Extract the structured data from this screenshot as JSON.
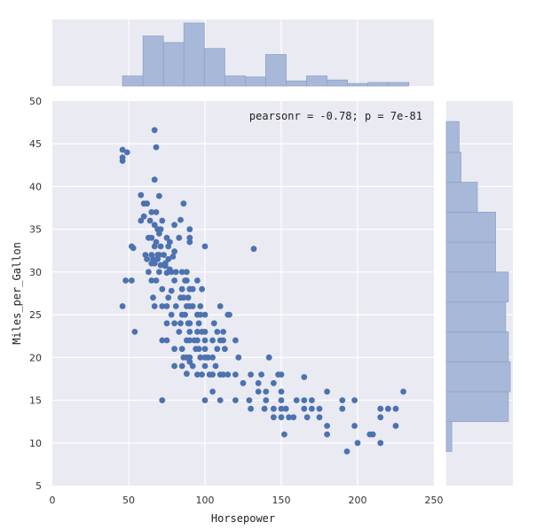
{
  "chart_data": {
    "type": "scatter",
    "title": "",
    "xlabel": "Horsepower",
    "ylabel": "Miles_per_Gallon",
    "xlim": [
      0,
      250
    ],
    "ylim": [
      5,
      50
    ],
    "xticks": [
      "0",
      "50",
      "100",
      "150",
      "200",
      "250"
    ],
    "yticks": [
      "5",
      "10",
      "15",
      "20",
      "25",
      "30",
      "35",
      "40",
      "45",
      "50"
    ],
    "grid": true,
    "annotation": "pearsonr = -0.78; p = 7e-81",
    "colors": {
      "background": "#EAEAF2",
      "grid": "#FFFFFF",
      "points": "#4C72B0",
      "hist_fill": "#A8B8D8",
      "hist_edge": "#8FA3C9"
    },
    "points": [
      [
        46,
        26
      ],
      [
        46,
        43
      ],
      [
        46,
        43.4
      ],
      [
        46,
        44.3
      ],
      [
        48,
        29
      ],
      [
        49,
        44
      ],
      [
        52,
        33
      ],
      [
        52,
        29
      ],
      [
        53,
        32.8
      ],
      [
        54,
        23
      ],
      [
        58,
        36
      ],
      [
        58,
        39
      ],
      [
        60,
        36.5
      ],
      [
        60,
        38
      ],
      [
        61,
        32
      ],
      [
        62,
        38
      ],
      [
        62,
        31.5
      ],
      [
        63,
        34
      ],
      [
        63,
        30
      ],
      [
        64,
        36
      ],
      [
        65,
        34
      ],
      [
        65,
        32
      ],
      [
        65,
        31
      ],
      [
        65,
        29
      ],
      [
        65,
        37
      ],
      [
        66,
        27
      ],
      [
        66,
        31.5
      ],
      [
        67,
        33
      ],
      [
        67,
        35.5
      ],
      [
        67,
        26
      ],
      [
        67,
        40.8
      ],
      [
        67,
        46.6
      ],
      [
        67,
        31
      ],
      [
        68,
        33.5
      ],
      [
        68,
        29
      ],
      [
        68,
        44.6
      ],
      [
        68,
        37
      ],
      [
        69,
        32
      ],
      [
        69,
        31.5
      ],
      [
        69,
        35
      ],
      [
        70,
        32
      ],
      [
        70,
        34.5
      ],
      [
        70,
        30
      ],
      [
        70,
        38.9
      ],
      [
        71,
        35
      ],
      [
        71,
        33
      ],
      [
        71,
        30.8
      ],
      [
        72,
        26
      ],
      [
        72,
        28
      ],
      [
        72,
        36
      ],
      [
        72,
        22
      ],
      [
        72,
        15
      ],
      [
        73,
        32
      ],
      [
        74,
        31
      ],
      [
        74,
        30.7
      ],
      [
        75,
        29.9
      ],
      [
        75,
        34
      ],
      [
        75,
        26
      ],
      [
        75,
        24
      ],
      [
        75,
        22
      ],
      [
        76,
        33
      ],
      [
        76,
        31.5
      ],
      [
        76,
        27
      ],
      [
        77,
        30.3
      ],
      [
        77,
        33.5
      ],
      [
        78,
        27.8
      ],
      [
        78,
        30
      ],
      [
        78,
        25
      ],
      [
        79,
        31.8
      ],
      [
        80,
        24
      ],
      [
        80,
        32.4
      ],
      [
        80,
        19
      ],
      [
        80,
        35.5
      ],
      [
        80,
        21
      ],
      [
        80,
        29
      ],
      [
        81,
        26
      ],
      [
        81,
        30
      ],
      [
        83,
        34
      ],
      [
        83,
        23
      ],
      [
        84,
        36.1
      ],
      [
        84,
        27
      ],
      [
        84,
        24
      ],
      [
        85,
        25
      ],
      [
        85,
        30
      ],
      [
        85,
        28
      ],
      [
        85,
        21
      ],
      [
        85,
        19
      ],
      [
        86,
        27
      ],
      [
        86,
        38
      ],
      [
        86,
        20
      ],
      [
        87,
        29
      ],
      [
        87,
        25
      ],
      [
        88,
        29
      ],
      [
        88,
        26
      ],
      [
        88,
        22
      ],
      [
        88,
        20
      ],
      [
        88,
        30
      ],
      [
        88,
        18.1
      ],
      [
        89,
        27
      ],
      [
        89,
        24
      ],
      [
        90,
        34
      ],
      [
        90,
        26
      ],
      [
        90,
        28
      ],
      [
        90,
        24
      ],
      [
        90,
        22
      ],
      [
        90,
        19.5
      ],
      [
        90,
        20
      ],
      [
        90,
        23
      ],
      [
        90,
        33.5
      ],
      [
        90,
        35
      ],
      [
        92,
        28
      ],
      [
        92,
        19
      ],
      [
        92,
        26
      ],
      [
        93,
        22
      ],
      [
        94,
        21
      ],
      [
        95,
        25
      ],
      [
        95,
        22
      ],
      [
        95,
        23
      ],
      [
        95,
        29
      ],
      [
        95,
        18
      ],
      [
        96,
        21
      ],
      [
        96,
        24
      ],
      [
        97,
        25
      ],
      [
        97,
        20
      ],
      [
        97,
        26
      ],
      [
        98,
        23
      ],
      [
        98,
        28
      ],
      [
        98,
        18
      ],
      [
        100,
        21
      ],
      [
        100,
        19
      ],
      [
        100,
        25
      ],
      [
        100,
        22
      ],
      [
        100,
        23
      ],
      [
        100,
        15
      ],
      [
        100,
        33
      ],
      [
        100,
        20
      ],
      [
        102,
        20
      ],
      [
        103,
        18
      ],
      [
        105,
        16
      ],
      [
        105,
        18
      ],
      [
        105,
        20
      ],
      [
        105,
        22
      ],
      [
        106,
        24
      ],
      [
        107,
        19
      ],
      [
        108,
        23
      ],
      [
        108,
        21
      ],
      [
        110,
        15
      ],
      [
        110,
        22
      ],
      [
        110,
        18
      ],
      [
        110,
        26
      ],
      [
        112,
        23
      ],
      [
        112,
        18
      ],
      [
        112,
        22
      ],
      [
        113,
        21
      ],
      [
        115,
        18
      ],
      [
        115,
        25
      ],
      [
        116,
        25
      ],
      [
        120,
        22
      ],
      [
        120,
        18
      ],
      [
        120,
        15
      ],
      [
        122,
        20
      ],
      [
        125,
        17
      ],
      [
        129,
        15
      ],
      [
        130,
        14
      ],
      [
        130,
        18
      ],
      [
        132,
        32.7
      ],
      [
        135,
        17
      ],
      [
        135,
        16
      ],
      [
        137,
        18
      ],
      [
        139,
        14
      ],
      [
        140,
        15
      ],
      [
        140,
        16
      ],
      [
        142,
        20
      ],
      [
        145,
        13
      ],
      [
        145,
        17
      ],
      [
        145,
        14
      ],
      [
        148,
        18
      ],
      [
        150,
        14
      ],
      [
        150,
        15
      ],
      [
        150,
        16
      ],
      [
        150,
        13
      ],
      [
        150,
        18
      ],
      [
        152,
        11
      ],
      [
        153,
        14
      ],
      [
        155,
        13
      ],
      [
        158,
        13
      ],
      [
        160,
        15
      ],
      [
        165,
        14
      ],
      [
        165,
        15
      ],
      [
        165,
        17.7
      ],
      [
        167,
        13
      ],
      [
        170,
        15
      ],
      [
        170,
        14
      ],
      [
        175,
        13
      ],
      [
        175,
        14
      ],
      [
        180,
        11
      ],
      [
        180,
        12
      ],
      [
        180,
        16
      ],
      [
        190,
        15
      ],
      [
        190,
        14
      ],
      [
        193,
        9
      ],
      [
        198,
        15
      ],
      [
        198,
        12
      ],
      [
        200,
        10
      ],
      [
        208,
        11
      ],
      [
        210,
        11
      ],
      [
        215,
        10
      ],
      [
        215,
        13
      ],
      [
        215,
        14
      ],
      [
        220,
        14
      ],
      [
        225,
        12
      ],
      [
        225,
        14
      ],
      [
        230,
        16
      ]
    ],
    "x_histogram": {
      "bin_edges": [
        46,
        59.4,
        72.8,
        86.2,
        99.6,
        113,
        126.4,
        139.8,
        153.2,
        166.6,
        180,
        193.4,
        206.8,
        220.2,
        233.6
      ],
      "counts": [
        2,
        10,
        8.7,
        12.6,
        7.5,
        2,
        1.8,
        6.3,
        1,
        2,
        1.2,
        0.5,
        0.7,
        0.7
      ]
    },
    "y_histogram": {
      "bin_edges": [
        9,
        12.5,
        16,
        19.5,
        23,
        26.5,
        30,
        33.5,
        37,
        40.5,
        44,
        47.6
      ],
      "counts": [
        3,
        34,
        35,
        34,
        32.5,
        34,
        27,
        27,
        17,
        8,
        7
      ]
    }
  }
}
